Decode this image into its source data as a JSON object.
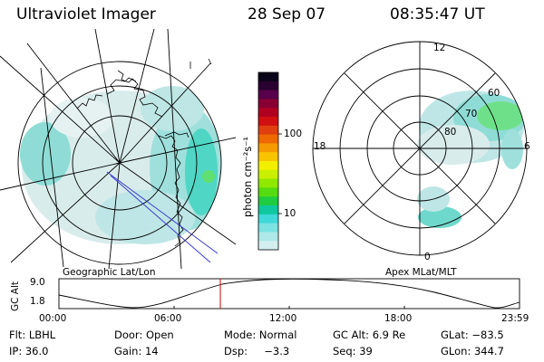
{
  "header": {
    "instrument": "Ultraviolet Imager",
    "date": "28 Sep 07",
    "time": "08:35:47 UT"
  },
  "left_panel": {
    "caption": "Geographic Lat/Lon"
  },
  "right_panel": {
    "caption": "Apex MLat/MLT",
    "mlt_labels": [
      "12",
      "18",
      "6",
      "0"
    ],
    "mlat_labels": [
      "60",
      "70",
      "80"
    ]
  },
  "colorbar": {
    "unit_label": "photon cm⁻²s⁻¹",
    "tick_labels": [
      "100",
      "10"
    ],
    "colors": [
      "#0a0418",
      "#2a0030",
      "#58004a",
      "#880033",
      "#b00020",
      "#d01010",
      "#e04010",
      "#ee6a00",
      "#f59a00",
      "#f8c400",
      "#f2ef00",
      "#c8f000",
      "#8fe800",
      "#55dc10",
      "#20cc40",
      "#10c8a0",
      "#40d8d8",
      "#7ce2e2",
      "#aee8e8",
      "#d2eeee"
    ]
  },
  "altitude_plot": {
    "ylabel": "GC Alt",
    "y_ticks": [
      "9.0",
      "1.8"
    ],
    "x_ticks": [
      "00:00",
      "06:00",
      "12:00",
      "18:00",
      "23:59"
    ],
    "current_time_color": "#cc0000"
  },
  "status": {
    "flt": "Flt:  LBHL",
    "door": "Door:  Open",
    "mode": "Mode:  Normal",
    "gc_alt": "GC Alt:  6.9 Re",
    "glat": "GLat:  −83.5",
    "ip": "IP:  36.0",
    "gain": "Gain:  14",
    "dsp": "Dsp:     −3.3",
    "seq": "Seq:  39",
    "glon": "GLon:  344.7"
  }
}
